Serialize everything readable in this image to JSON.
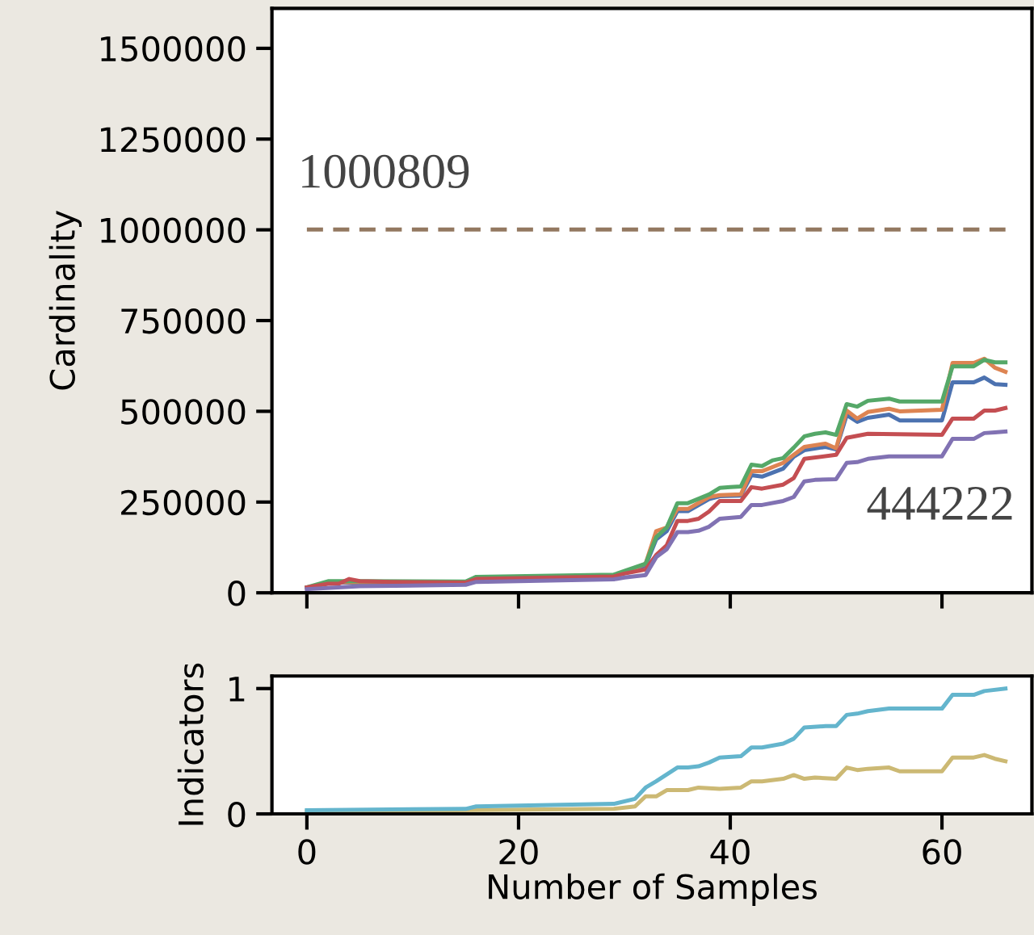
{
  "chart_data": [
    {
      "type": "line",
      "ylabel": "Cardinality",
      "xlim": [
        -3.3,
        68.5
      ],
      "xticks": [
        0,
        20,
        40,
        60
      ],
      "ylim": [
        0,
        1610000
      ],
      "yticks": [
        0,
        250000,
        500000,
        750000,
        1000000,
        1250000,
        1500000
      ],
      "tick_labels": "y",
      "grid": false,
      "annotations": [
        {
          "text": "1000809",
          "x": 0,
          "y": 1000809
        },
        {
          "text": "444222",
          "x": 66,
          "y": 444222
        }
      ],
      "series": [
        {
          "color": "#937860",
          "line_style": "dashed",
          "x": [
            0,
            66
          ],
          "values": [
            1000809,
            1000809
          ]
        },
        {
          "color": "#4c72b0",
          "x": [
            0,
            2,
            4,
            15,
            16,
            29,
            30,
            31,
            32,
            33,
            34,
            35,
            36,
            38,
            39,
            41,
            42,
            43,
            45,
            46,
            47,
            49,
            50,
            51,
            52,
            53,
            55,
            56,
            60,
            61,
            63,
            64,
            65,
            66
          ],
          "values": [
            14000,
            27000,
            29000,
            28000,
            40000,
            46000,
            56000,
            65000,
            75000,
            147000,
            170000,
            225000,
            225000,
            258000,
            266000,
            268000,
            324000,
            320000,
            342000,
            375000,
            393000,
            402000,
            395000,
            490000,
            471000,
            482000,
            491000,
            475000,
            475000,
            580000,
            580000,
            593000,
            575000,
            573000
          ]
        },
        {
          "color": "#dd8452",
          "x": [
            0,
            2,
            4,
            15,
            16,
            29,
            30,
            31,
            32,
            33,
            34,
            35,
            36,
            38,
            39,
            41,
            42,
            43,
            45,
            46,
            47,
            49,
            50,
            51,
            52,
            53,
            55,
            56,
            60,
            61,
            63,
            64,
            65,
            66
          ],
          "values": [
            14000,
            28000,
            30000,
            29000,
            42000,
            48000,
            58000,
            68000,
            80000,
            170000,
            180000,
            231000,
            231000,
            264000,
            269000,
            271000,
            335000,
            335000,
            358000,
            380000,
            402000,
            411000,
            398000,
            502000,
            480000,
            498000,
            507000,
            500000,
            504000,
            633000,
            633000,
            645000,
            620000,
            609000
          ]
        },
        {
          "color": "#55a868",
          "x": [
            0,
            2,
            4,
            15,
            16,
            29,
            30,
            31,
            32,
            33,
            34,
            35,
            36,
            38,
            39,
            40,
            41,
            42,
            43,
            44,
            45,
            46,
            47,
            48,
            49,
            50,
            51,
            52,
            53,
            55,
            56,
            60,
            61,
            63,
            64,
            65,
            66
          ],
          "values": [
            15000,
            32000,
            32000,
            31000,
            44000,
            50000,
            60000,
            70000,
            80000,
            153000,
            180000,
            247000,
            247000,
            271000,
            289000,
            291000,
            293000,
            353000,
            349000,
            365000,
            371000,
            400000,
            431000,
            438000,
            442000,
            435000,
            520000,
            513000,
            529000,
            535000,
            527000,
            527000,
            624000,
            624000,
            642000,
            635000,
            635000
          ]
        },
        {
          "color": "#c44e52",
          "x": [
            0,
            2,
            3,
            4,
            5,
            8,
            15,
            16,
            29,
            30,
            32,
            33,
            34,
            35,
            36,
            37,
            38,
            39,
            41,
            42,
            43,
            45,
            46,
            47,
            50,
            51,
            53,
            60,
            61,
            63,
            64,
            65,
            66
          ],
          "values": [
            15000,
            25000,
            25000,
            38000,
            32000,
            30000,
            28000,
            38000,
            45000,
            53000,
            64000,
            104000,
            131000,
            198000,
            198000,
            204000,
            224000,
            253000,
            253000,
            291000,
            287000,
            298000,
            316000,
            369000,
            380000,
            427000,
            438000,
            435000,
            480000,
            480000,
            502000,
            502000,
            509000
          ]
        },
        {
          "color": "#8172b3",
          "x": [
            0,
            5,
            15,
            16,
            29,
            30,
            32,
            33,
            34,
            35,
            36,
            37,
            38,
            39,
            41,
            42,
            43,
            45,
            46,
            47,
            48,
            50,
            51,
            52,
            53,
            55,
            60,
            61,
            63,
            64,
            65,
            66
          ],
          "values": [
            10000,
            18000,
            22000,
            30000,
            37000,
            42000,
            49000,
            98000,
            120000,
            167000,
            167000,
            171000,
            182000,
            204000,
            209000,
            242000,
            242000,
            253000,
            264000,
            307000,
            311000,
            313000,
            358000,
            360000,
            369000,
            376000,
            376000,
            424000,
            424000,
            440000,
            442000,
            444222
          ]
        }
      ]
    },
    {
      "type": "line",
      "xlabel": "Number of Samples",
      "ylabel": "Indicators",
      "xlim": [
        -3.3,
        68.5
      ],
      "xticks": [
        0,
        20,
        40,
        60
      ],
      "ylim": [
        0,
        1.1
      ],
      "yticks": [
        0,
        1
      ],
      "grid": false,
      "series": [
        {
          "color": "#ccb974",
          "x": [
            0,
            29,
            31,
            32,
            33,
            34,
            36,
            37,
            39,
            41,
            42,
            43,
            45,
            46,
            47,
            48,
            50,
            51,
            52,
            53,
            55,
            56,
            60,
            61,
            63,
            64,
            65,
            66
          ],
          "values": [
            0.02,
            0.04,
            0.06,
            0.14,
            0.14,
            0.19,
            0.19,
            0.21,
            0.2,
            0.21,
            0.26,
            0.26,
            0.28,
            0.31,
            0.28,
            0.29,
            0.28,
            0.37,
            0.35,
            0.36,
            0.37,
            0.34,
            0.34,
            0.45,
            0.45,
            0.47,
            0.44,
            0.42
          ]
        },
        {
          "color": "#64b5cd",
          "x": [
            0,
            15,
            16,
            29,
            31,
            32,
            33,
            35,
            36,
            37,
            38,
            39,
            41,
            42,
            43,
            45,
            46,
            47,
            49,
            50,
            51,
            52,
            53,
            55,
            60,
            61,
            63,
            64,
            66
          ],
          "values": [
            0.03,
            0.04,
            0.06,
            0.08,
            0.12,
            0.21,
            0.26,
            0.37,
            0.37,
            0.38,
            0.41,
            0.45,
            0.46,
            0.53,
            0.53,
            0.56,
            0.6,
            0.69,
            0.7,
            0.7,
            0.79,
            0.8,
            0.82,
            0.84,
            0.84,
            0.95,
            0.95,
            0.98,
            1.0
          ]
        }
      ]
    }
  ]
}
